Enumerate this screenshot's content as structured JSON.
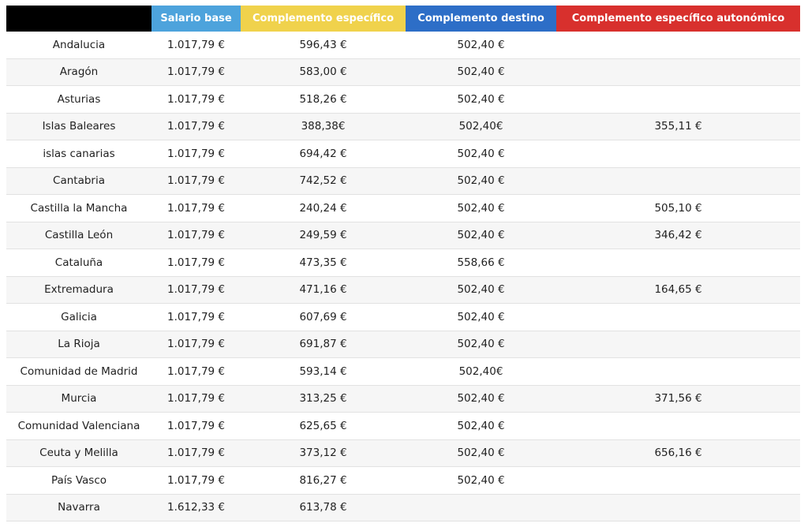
{
  "table": {
    "headers": [
      "Salario base",
      "Complemento específico",
      "Complemento destino",
      "Complemento específico autonómico"
    ],
    "rows": [
      [
        "Andalucia",
        "1.017,79 €",
        "596,43 €",
        "502,40 €",
        null
      ],
      [
        "Aragón",
        "1.017,79 €",
        "583,00 €",
        "502,40 €",
        null
      ],
      [
        "Asturias",
        "1.017,79 €",
        "518,26 €",
        "502,40 €",
        null
      ],
      [
        "Islas Baleares",
        "1.017,79 €",
        "388,38€",
        "502,40€",
        "355,11 €"
      ],
      [
        "islas canarias",
        "1.017,79 €",
        "694,42 €",
        "502,40 €",
        null
      ],
      [
        "Cantabria",
        "1.017,79 €",
        "742,52 €",
        "502,40 €",
        null
      ],
      [
        "Castilla la Mancha",
        "1.017,79 €",
        "240,24 €",
        "502,40 €",
        "505,10 €"
      ],
      [
        "Castilla León",
        "1.017,79 €",
        "249,59 €",
        "502,40 €",
        "346,42 €"
      ],
      [
        "Cataluña",
        "1.017,79 €",
        "473,35 €",
        "558,66 €",
        null
      ],
      [
        "Extremadura",
        "1.017,79 €",
        "471,16 €",
        "502,40 €",
        "164,65 €"
      ],
      [
        "Galicia",
        "1.017,79 €",
        "607,69 €",
        "502,40 €",
        null
      ],
      [
        "La Rioja",
        "1.017,79 €",
        "691,87 €",
        "502,40 €",
        null
      ],
      [
        "Comunidad de Madrid",
        "1.017,79 €",
        "593,14 €",
        "502,40€",
        null
      ],
      [
        "Murcia",
        "1.017,79 €",
        "313,25 €",
        "502,40 €",
        "371,56 €"
      ],
      [
        "Comunidad Valenciana",
        "1.017,79 €",
        "625,65 €",
        "502,40 €",
        null
      ],
      [
        "Ceuta y Melilla",
        "1.017,79 €",
        "373,12 €",
        "502,40 €",
        "656,16 €"
      ],
      [
        "País Vasco",
        "1.017,79 €",
        "816,27 €",
        "502,40 €",
        null
      ],
      [
        "Navarra",
        "1.612,33 €",
        "613,78 €",
        null,
        null
      ]
    ]
  }
}
